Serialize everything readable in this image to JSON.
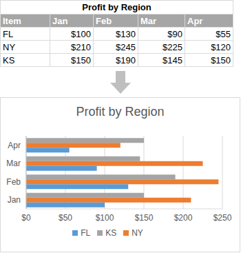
{
  "table": {
    "title": "Profit by Region",
    "header": [
      "Item",
      "Jan",
      "Feb",
      "Mar",
      "Apr"
    ],
    "rows": [
      [
        "FL",
        "$100",
        "$130",
        "$90",
        "$55"
      ],
      [
        "NY",
        "$210",
        "$245",
        "$225",
        "$120"
      ],
      [
        "KS",
        "$150",
        "$190",
        "$145",
        "$150"
      ]
    ]
  },
  "chart_data": {
    "type": "bar",
    "orientation": "horizontal",
    "title": "Profit by Region",
    "categories": [
      "Jan",
      "Feb",
      "Mar",
      "Apr"
    ],
    "series": [
      {
        "name": "KS",
        "color": "#a5a5a5",
        "values": [
          150,
          190,
          145,
          150
        ]
      },
      {
        "name": "NY",
        "color": "#ed7d31",
        "values": [
          210,
          245,
          225,
          120
        ]
      },
      {
        "name": "FL",
        "color": "#5b9bd5",
        "values": [
          100,
          130,
          90,
          55
        ]
      }
    ],
    "xlim": [
      0,
      250
    ],
    "xticks": [
      {
        "value": 0,
        "label": "$0"
      },
      {
        "value": 50,
        "label": "$50"
      },
      {
        "value": 100,
        "label": "$100"
      },
      {
        "value": 150,
        "label": "$150"
      },
      {
        "value": 200,
        "label": "$200"
      },
      {
        "value": 250,
        "label": "$250"
      }
    ],
    "grid": true,
    "legend": "bottom"
  }
}
